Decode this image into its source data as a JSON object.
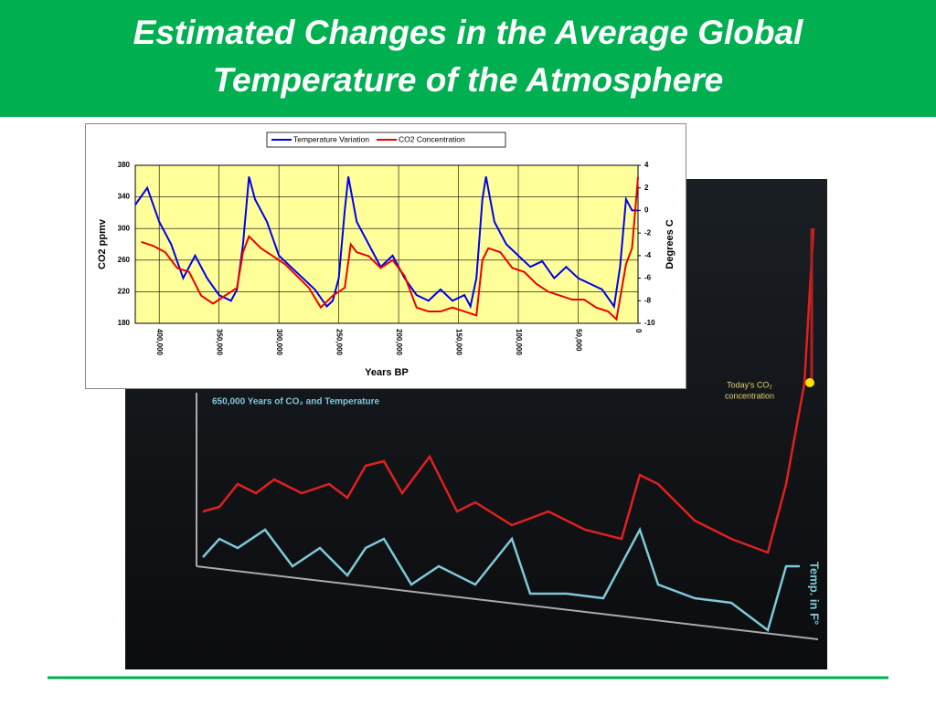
{
  "slide": {
    "title_line1": "Estimated Changes in the Average Global",
    "title_line2": "Temperature of the Atmosphere"
  },
  "photo": {
    "caption": "650,000 Years of CO₂ and Temperature",
    "today": "Today's CO₂",
    "today2": "concentration",
    "temp": "Temp. in F°"
  },
  "chart_data": {
    "type": "line",
    "xlabel": "Years BP",
    "ylabel": "CO2 ppmv",
    "y2label": "Degrees C",
    "xlim": [
      420000,
      0
    ],
    "ylim": [
      180,
      380
    ],
    "y2lim": [
      -10,
      4
    ],
    "xticks": [
      {
        "value": 400000,
        "label": "400,000"
      },
      {
        "value": 350000,
        "label": "350,000"
      },
      {
        "value": 300000,
        "label": "300,000"
      },
      {
        "value": 250000,
        "label": "250,000"
      },
      {
        "value": 200000,
        "label": "200,000"
      },
      {
        "value": 150000,
        "label": "150,000"
      },
      {
        "value": 100000,
        "label": "100,000"
      },
      {
        "value": 50000,
        "label": "50,000"
      },
      0
    ],
    "yticks": [
      180,
      220,
      260,
      300,
      340,
      380
    ],
    "y2ticks": [
      -10,
      -8,
      -6,
      -4,
      -2,
      0,
      2,
      4
    ],
    "grid": true,
    "legend": "top",
    "series": [
      {
        "name": "Temperature Variation",
        "color": "#0000ee",
        "axis": "y2",
        "x": [
          420000,
          410000,
          400000,
          390000,
          380000,
          370000,
          360000,
          350000,
          340000,
          335000,
          330000,
          325000,
          320000,
          310000,
          300000,
          290000,
          280000,
          270000,
          260000,
          255000,
          250000,
          245000,
          242000,
          235000,
          225000,
          215000,
          205000,
          195000,
          185000,
          175000,
          165000,
          155000,
          145000,
          140000,
          135000,
          130000,
          127000,
          120000,
          110000,
          100000,
          90000,
          80000,
          70000,
          60000,
          50000,
          40000,
          30000,
          20000,
          15000,
          10000,
          5000,
          0
        ],
        "values": [
          0.5,
          2,
          -1,
          -3,
          -6,
          -4,
          -6,
          -7.5,
          -8,
          -7,
          -3,
          3,
          1,
          -1,
          -4,
          -5,
          -6,
          -7,
          -8.5,
          -8,
          -6,
          0,
          3,
          -1,
          -3,
          -5,
          -4,
          -6,
          -7.5,
          -8,
          -7,
          -8,
          -7.5,
          -8.5,
          -6,
          1,
          3,
          -1,
          -3,
          -4,
          -5,
          -4.5,
          -6,
          -5,
          -6,
          -6.5,
          -7,
          -8.5,
          -5,
          1,
          0,
          0
        ]
      },
      {
        "name": "CO2 Concentration",
        "color": "#ee0000",
        "x": [
          415000,
          405000,
          395000,
          385000,
          375000,
          365000,
          355000,
          345000,
          335000,
          330000,
          325000,
          315000,
          305000,
          295000,
          285000,
          275000,
          265000,
          255000,
          245000,
          240000,
          235000,
          225000,
          215000,
          205000,
          195000,
          185000,
          175000,
          165000,
          155000,
          145000,
          135000,
          130000,
          125000,
          115000,
          105000,
          95000,
          85000,
          75000,
          65000,
          55000,
          45000,
          35000,
          25000,
          18000,
          10000,
          5000,
          0
        ],
        "values": [
          283,
          278,
          270,
          250,
          245,
          215,
          205,
          215,
          225,
          270,
          290,
          275,
          265,
          255,
          240,
          225,
          200,
          215,
          225,
          280,
          270,
          265,
          250,
          260,
          240,
          200,
          195,
          195,
          200,
          195,
          190,
          260,
          275,
          270,
          250,
          245,
          230,
          220,
          215,
          210,
          210,
          200,
          195,
          185,
          255,
          275,
          365
        ]
      }
    ]
  }
}
